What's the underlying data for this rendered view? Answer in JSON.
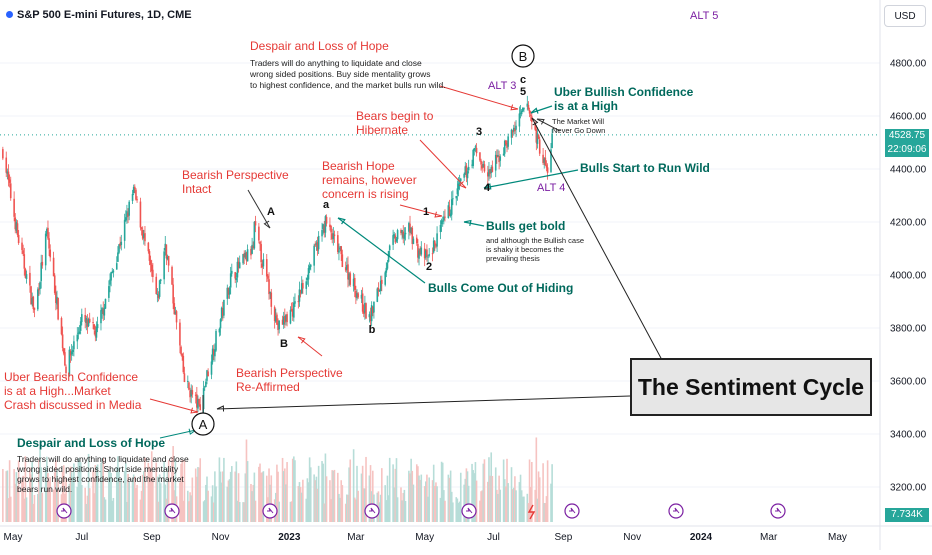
{
  "header": {
    "symbol": "S&P 500 E-mini Futures, 1D, CME",
    "currency": "USD",
    "alt5": "ALT 5"
  },
  "price_label": {
    "current": "4528.75",
    "countdown": "22:09:06"
  },
  "volume_label": "7.734K",
  "colors": {
    "up": "#26a69a",
    "down": "#ef5350",
    "red_text": "#e53935",
    "green_text": "#00695c",
    "purple": "#7b1fa2",
    "blue_dot": "#2962ff"
  },
  "annotations": {
    "despair_top_title": "Despair and Loss of Hope",
    "despair_top_body": [
      "Traders will do anything to liquidate and close",
      "wrong sided positions.  Buy side mentality grows",
      "to highest confidence, and the market bulls run wild."
    ],
    "uber_bullish": [
      "Uber Bullish Confidence",
      "is at a High"
    ],
    "never_down": [
      "The Market Will",
      "Never Go Down"
    ],
    "bears_hibernate": [
      "Bears begin to",
      "Hibernate"
    ],
    "bulls_run_wild": "Bulls Start to Run Wild",
    "alt4": "ALT 4",
    "alt3": "ALT 3",
    "bearish_hope": [
      "Bearish Hope",
      "remains, however",
      "concern is rising"
    ],
    "bulls_bold": "Bulls get bold",
    "bulls_bold_body": [
      "and although the Bullish case",
      "is shaky it becomes the",
      "prevailing thesis"
    ],
    "bulls_hiding": "Bulls Come Out of Hiding",
    "bearish_intact": [
      "Bearish Perspective",
      "Intact"
    ],
    "bearish_reaffirmed": [
      "Bearish Perspective",
      "Re-Affirmed"
    ],
    "uber_bearish": [
      "Uber Bearish Confidence",
      "is at a High...Market",
      "Crash discussed in Media"
    ],
    "despair_bottom_title": "Despair and Loss of Hope",
    "despair_bottom_body": [
      "Traders will do anything to liquidate and close",
      "wrong sided positions.  Short side mentality",
      "grows to highest confidence, and the market",
      "bears run wild."
    ],
    "sentiment_cycle": "The Sentiment Cycle",
    "wave_labels": {
      "A_circle": "A",
      "B_circle": "B",
      "A": "A",
      "B": "B",
      "a": "a",
      "b": "b",
      "c": "c",
      "one": "1",
      "two": "2",
      "three": "3",
      "four": "4",
      "five": "5"
    }
  },
  "chart_data": {
    "type": "candlestick",
    "title": "S&P 500 E-mini Futures, 1D, CME",
    "y_axis": {
      "ticks": [
        4800,
        4600,
        4400,
        4200,
        4000,
        3800,
        3600,
        3400,
        3200
      ],
      "labels": [
        "4800.00",
        "4600.00",
        "4400.00",
        "4200.00",
        "4000.00",
        "3800.00",
        "3600.00",
        "3400.00",
        "3200.00"
      ],
      "ylim": [
        3120,
        4980
      ]
    },
    "x_axis": {
      "labels": [
        "May",
        "Jul",
        "Sep",
        "Nov",
        "2023",
        "Mar",
        "May",
        "Jul",
        "Sep",
        "Nov",
        "2024",
        "Mar",
        "May"
      ],
      "bold": [
        "2023",
        "2024"
      ]
    },
    "price_path": [
      [
        "2022-04-22",
        4470
      ],
      [
        "2022-05-05",
        4150
      ],
      [
        "2022-05-20",
        3860
      ],
      [
        "2022-05-31",
        4160
      ],
      [
        "2022-06-17",
        3650
      ],
      [
        "2022-07-01",
        3830
      ],
      [
        "2022-07-14",
        3780
      ],
      [
        "2022-08-16",
        4320
      ],
      [
        "2022-09-06",
        3900
      ],
      [
        "2022-09-13",
        4120
      ],
      [
        "2022-09-30",
        3600
      ],
      [
        "2022-10-13",
        3500
      ],
      [
        "2022-11-10",
        3990
      ],
      [
        "2022-11-30",
        4100
      ],
      [
        "2022-12-01",
        4180
      ],
      [
        "2022-12-22",
        3800
      ],
      [
        "2023-01-06",
        3880
      ],
      [
        "2023-02-02",
        4200
      ],
      [
        "2023-03-13",
        3830
      ],
      [
        "2023-04-03",
        4130
      ],
      [
        "2023-04-18",
        4170
      ],
      [
        "2023-04-25",
        4090
      ],
      [
        "2023-05-04",
        4060
      ],
      [
        "2023-06-15",
        4470
      ],
      [
        "2023-06-26",
        4370
      ],
      [
        "2023-07-31",
        4640
      ],
      [
        "2023-08-18",
        4380
      ],
      [
        "2023-08-22",
        4529
      ]
    ],
    "current_price": 4528.75,
    "volume_last": "7.734K"
  }
}
